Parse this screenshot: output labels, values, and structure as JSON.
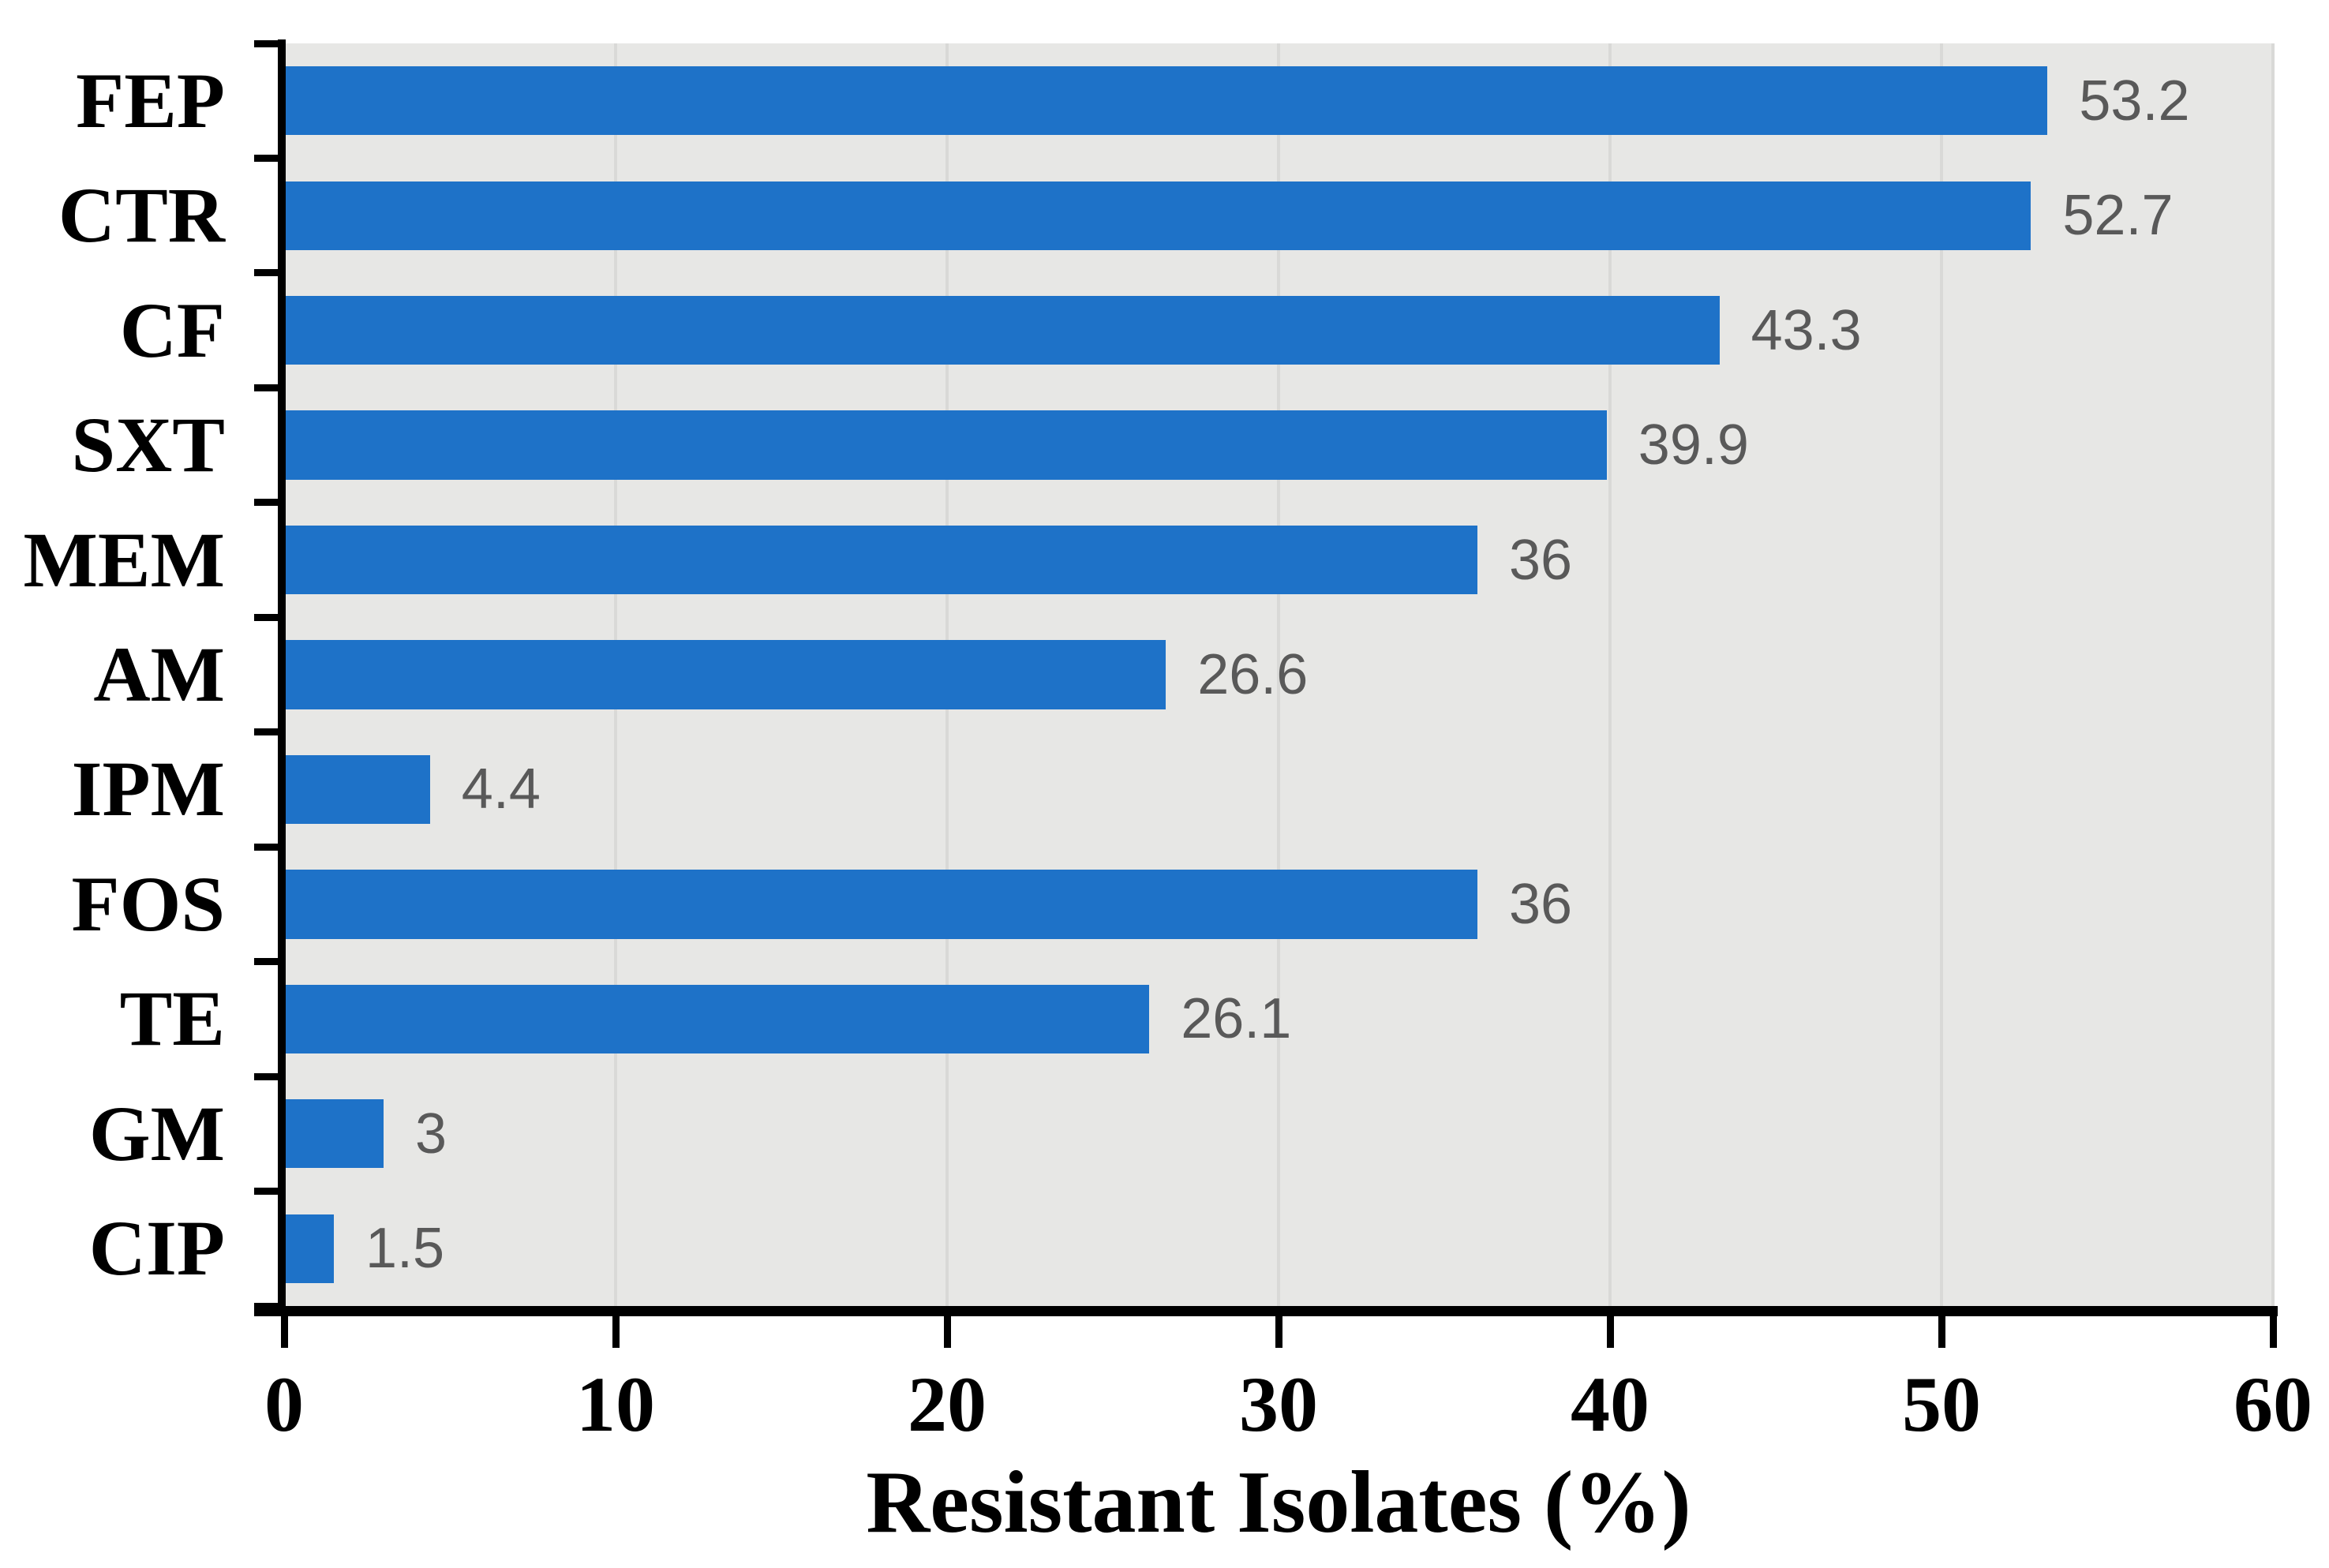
{
  "chart_data": {
    "type": "bar",
    "orientation": "horizontal",
    "categories": [
      "FEP",
      "CTR",
      "CF",
      "SXT",
      "MEM",
      "AM",
      "IPM",
      "FOS",
      "TE",
      "GM",
      "CIP"
    ],
    "values": [
      53.2,
      52.7,
      43.3,
      39.9,
      36,
      26.6,
      4.4,
      36,
      26.1,
      3,
      1.5
    ],
    "value_labels": [
      "53.2",
      "52.7",
      "43.3",
      "39.9",
      "36",
      "26.6",
      "4.4",
      "36",
      "26.1",
      "3",
      "1.5"
    ],
    "title": "",
    "xlabel": "Resistant Isolates (%)",
    "ylabel": "",
    "xlim": [
      0,
      60
    ],
    "x_ticks": [
      0,
      10,
      20,
      30,
      40,
      50,
      60
    ],
    "grid": "vertical-gridlines",
    "legend": "none",
    "colors": {
      "bar": "#1e72c8",
      "plot_background": "#e7e7e5",
      "gridline": "#d9d9d7",
      "value_label": "#595959",
      "axis": "#000000"
    }
  }
}
